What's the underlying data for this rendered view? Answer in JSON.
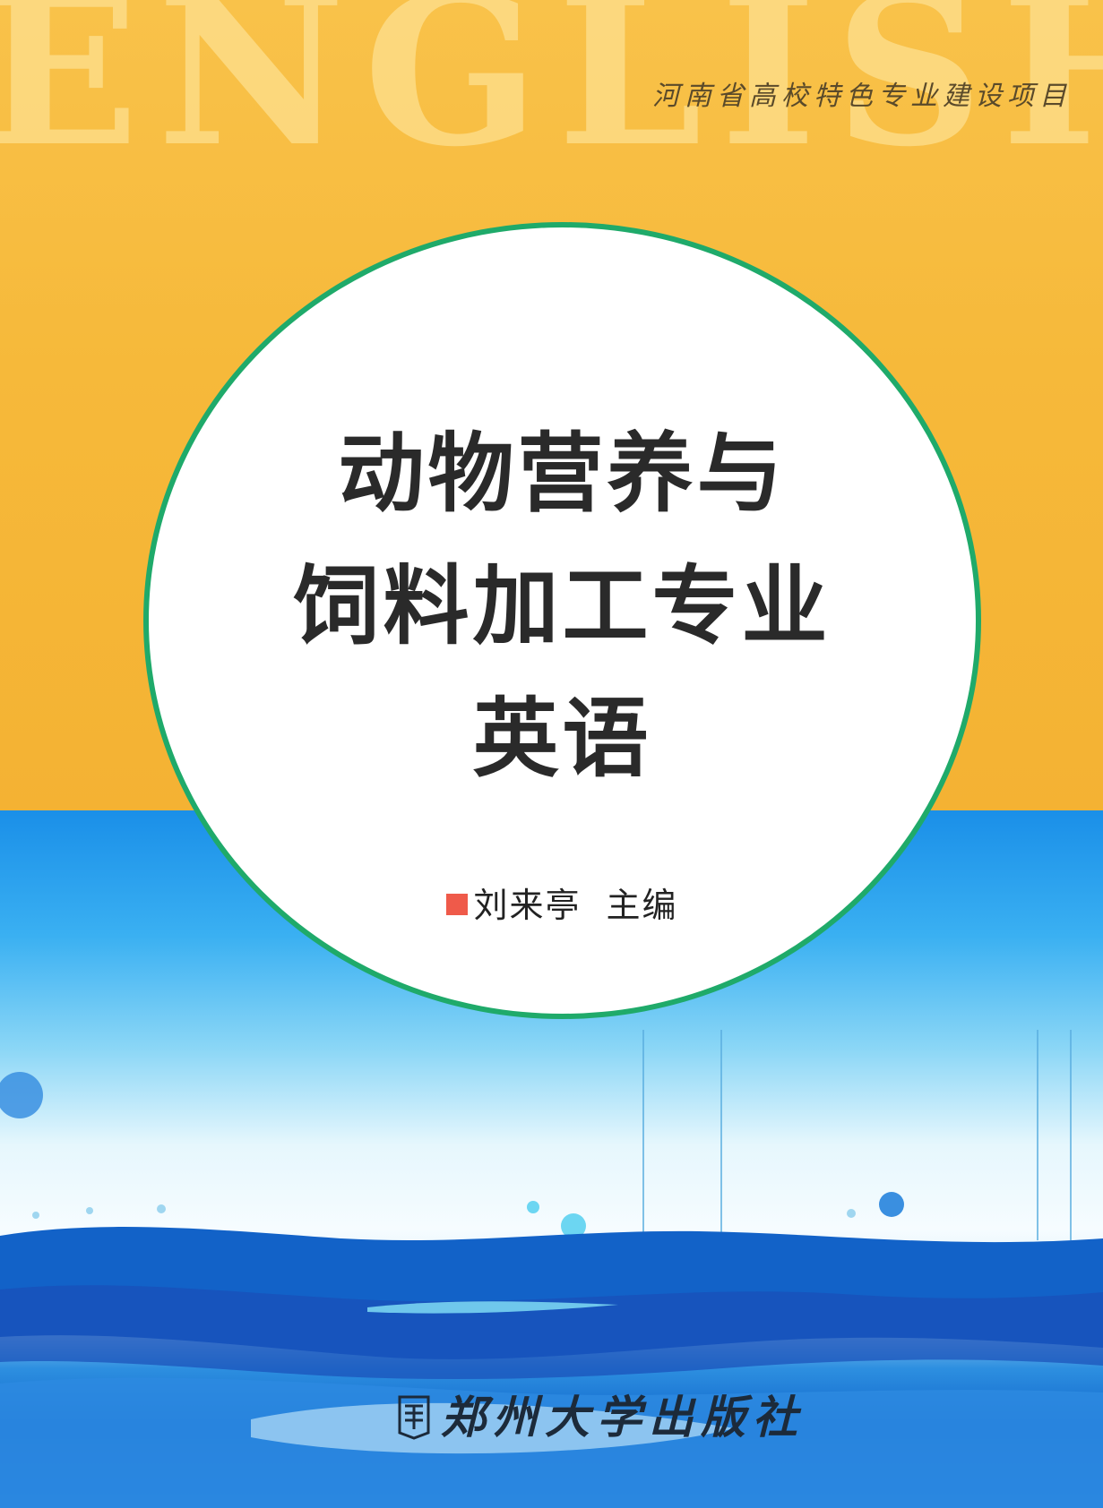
{
  "cover": {
    "background_word": "ENGLISH",
    "series": "河南省高校特色专业建设项目",
    "title_lines": [
      "动物营养与",
      "饲料加工专业",
      "英语"
    ],
    "editor_name": "刘来亭",
    "editor_role": "主编",
    "publisher": "郑州大学出版社"
  },
  "colors": {
    "top_band": "#f6b93a",
    "circle_border": "#1faa6a",
    "title_text": "#2a2a2a",
    "editor_mark": "#ef5a4a",
    "wave_dark": "#1262c8"
  },
  "icons": {
    "publisher_logo": "publisher-logo-icon",
    "editor_mark": "square-bullet-icon"
  }
}
